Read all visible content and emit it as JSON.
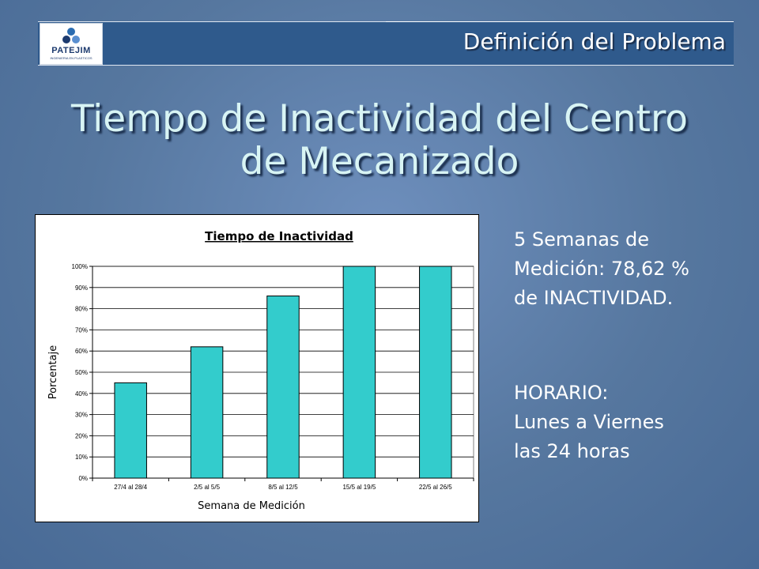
{
  "header": {
    "logo_text": "PATEJIM",
    "logo_subtext": "INGENIERIA EN PLASTICOS",
    "section_title": "Definición del Problema"
  },
  "slide_title": {
    "line1": "Tiempo de Inactividad del Centro",
    "line2": "de Mecanizado"
  },
  "side_notes": {
    "lines": [
      "5 Semanas de",
      "Medición: 78,62 %",
      "de INACTIVIDAD."
    ],
    "schedule_lines": [
      "HORARIO:",
      "Lunes a Viernes",
      "las 24 horas"
    ]
  },
  "colors": {
    "bar_fill": "#33cccc",
    "header_bar": "#2f5a8c",
    "title_text": "#d8f4f4"
  },
  "chart_data": {
    "type": "bar",
    "title": "Tiempo de Inactividad",
    "xlabel": "Semana de Medición",
    "ylabel": "Porcentaje",
    "categories": [
      "27/4 al 28/4",
      "2/5 al 5/5",
      "8/5 al 12/5",
      "15/5 al 19/5",
      "22/5 al 26/5"
    ],
    "values": [
      45,
      62,
      86,
      100,
      100
    ],
    "ylim": [
      0,
      100
    ],
    "ytick_labels": [
      "0%",
      "10%",
      "20%",
      "30%",
      "40%",
      "50%",
      "60%",
      "70%",
      "80%",
      "90%",
      "100%"
    ],
    "grid": true,
    "legend": "none"
  }
}
